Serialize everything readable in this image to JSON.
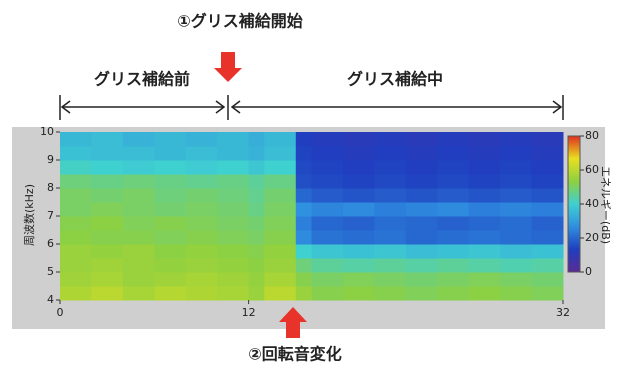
{
  "chart_data": {
    "type": "heatmap",
    "title": "①グリス補給開始",
    "annotations": [
      "グリス補給前",
      "グリス補給中",
      "②回転音変化"
    ],
    "y_label": "周波数(kHz)",
    "colorbar_label": "エネルギー(dB)",
    "x_edges": [
      0,
      2,
      4,
      6,
      8,
      10,
      12,
      13,
      15,
      16,
      18,
      20,
      22,
      24,
      26,
      28,
      30,
      32
    ],
    "y_edges": [
      4,
      4.5,
      5,
      5.5,
      6,
      6.5,
      7,
      7.5,
      8,
      8.5,
      9,
      9.5,
      10
    ],
    "z": [
      [
        58,
        60,
        57,
        59,
        58,
        57,
        55,
        60,
        55,
        52,
        53,
        52,
        51,
        52,
        53,
        52,
        51
      ],
      [
        56,
        57,
        55,
        56,
        57,
        56,
        54,
        57,
        52,
        50,
        51,
        50,
        49,
        50,
        51,
        50,
        49
      ],
      [
        55,
        56,
        55,
        54,
        55,
        54,
        53,
        55,
        48,
        45,
        44,
        45,
        44,
        45,
        44,
        43,
        44
      ],
      [
        55,
        54,
        55,
        53,
        54,
        53,
        52,
        54,
        40,
        38,
        37,
        38,
        36,
        37,
        38,
        36,
        37
      ],
      [
        53,
        52,
        52,
        51,
        52,
        51,
        50,
        52,
        26,
        22,
        21,
        22,
        20,
        21,
        22,
        21,
        20
      ],
      [
        52,
        53,
        51,
        52,
        51,
        50,
        49,
        51,
        24,
        20,
        19,
        21,
        20,
        19,
        20,
        21,
        19
      ],
      [
        50,
        51,
        50,
        49,
        50,
        49,
        47,
        50,
        27,
        25,
        26,
        24,
        25,
        26,
        24,
        25,
        24
      ],
      [
        50,
        49,
        50,
        48,
        49,
        48,
        46,
        49,
        20,
        18,
        17,
        18,
        17,
        18,
        17,
        18,
        17
      ],
      [
        48,
        47,
        48,
        47,
        46,
        47,
        45,
        47,
        16,
        15,
        14,
        15,
        14,
        15,
        14,
        15,
        14
      ],
      [
        41,
        40,
        39,
        40,
        39,
        40,
        38,
        40,
        15,
        14,
        13,
        14,
        13,
        14,
        13,
        14,
        13
      ],
      [
        37,
        36,
        36,
        35,
        36,
        35,
        34,
        36,
        14,
        13,
        12,
        13,
        12,
        13,
        12,
        13,
        12
      ],
      [
        35,
        36,
        34,
        35,
        34,
        35,
        33,
        35,
        13,
        12,
        11,
        12,
        11,
        12,
        11,
        12,
        11
      ]
    ],
    "xlim": [
      0,
      32
    ],
    "xticks": [
      0,
      12,
      32
    ],
    "ylim": [
      4,
      10
    ],
    "yticks": [
      4,
      5,
      6,
      7,
      8,
      9,
      10
    ],
    "zlim": [
      0,
      80
    ],
    "zticks": [
      0,
      20,
      40,
      60,
      80
    ],
    "colormap": [
      "#5b2a96",
      "#1f3fc0",
      "#2f8fe0",
      "#3fd0d0",
      "#8ed040",
      "#e8e020",
      "#e03020"
    ]
  }
}
